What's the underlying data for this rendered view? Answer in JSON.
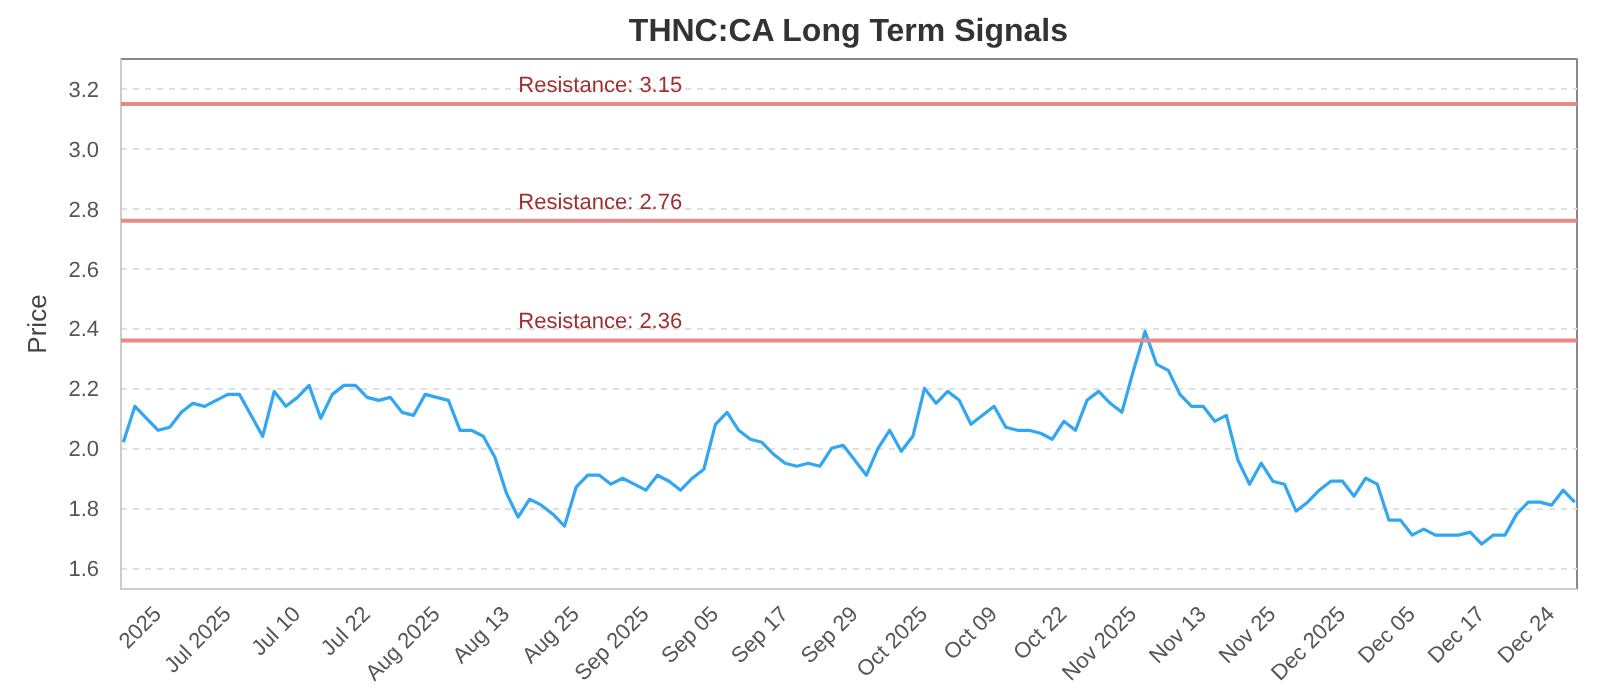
{
  "chart_data": {
    "type": "line",
    "title": "THNC:CA Long Term Signals",
    "ylabel": "Price",
    "categories": [
      null,
      null,
      null,
      "2025",
      null,
      null,
      null,
      null,
      null,
      "Jul 2025",
      null,
      null,
      null,
      null,
      null,
      "Jul 10",
      null,
      null,
      null,
      null,
      null,
      "Jul 22",
      null,
      null,
      null,
      null,
      null,
      "Aug 2025",
      null,
      null,
      null,
      null,
      null,
      "Aug 13",
      null,
      null,
      null,
      null,
      null,
      "Aug 25",
      null,
      null,
      null,
      null,
      null,
      "Sep 2025",
      null,
      null,
      null,
      null,
      null,
      "Sep 05",
      null,
      null,
      null,
      null,
      null,
      "Sep 17",
      null,
      null,
      null,
      null,
      null,
      "Sep 29",
      null,
      null,
      null,
      null,
      null,
      "Oct 2025",
      null,
      null,
      null,
      null,
      null,
      "Oct 09",
      null,
      null,
      null,
      null,
      null,
      "Oct 22",
      null,
      null,
      null,
      null,
      null,
      "Nov 2025",
      null,
      null,
      null,
      null,
      null,
      "Nov 13",
      null,
      null,
      null,
      null,
      null,
      "Nov 25",
      null,
      null,
      null,
      null,
      null,
      "Dec 2025",
      null,
      null,
      null,
      null,
      null,
      "Dec 05",
      null,
      null,
      null,
      null,
      null,
      "Dec 17",
      null,
      null,
      null,
      null,
      null,
      "Dec 24",
      null,
      null
    ],
    "series": [
      {
        "color": "#33a6f2",
        "values": [
          2.02,
          2.14,
          2.1,
          2.06,
          2.07,
          2.12,
          2.15,
          2.14,
          2.16,
          2.18,
          2.18,
          2.11,
          2.04,
          2.19,
          2.14,
          2.17,
          2.21,
          2.1,
          2.18,
          2.21,
          2.21,
          2.17,
          2.16,
          2.17,
          2.12,
          2.11,
          2.18,
          2.17,
          2.16,
          2.06,
          2.06,
          2.04,
          1.97,
          1.85,
          1.77,
          1.83,
          1.81,
          1.78,
          1.74,
          1.87,
          1.91,
          1.91,
          1.88,
          1.9,
          1.88,
          1.86,
          1.91,
          1.89,
          1.86,
          1.9,
          1.93,
          2.08,
          2.12,
          2.06,
          2.03,
          2.02,
          1.98,
          1.95,
          1.94,
          1.95,
          1.94,
          2.0,
          2.01,
          1.96,
          1.91,
          2.0,
          2.06,
          1.99,
          2.04,
          2.2,
          2.15,
          2.19,
          2.16,
          2.08,
          2.11,
          2.14,
          2.07,
          2.06,
          2.06,
          2.05,
          2.03,
          2.09,
          2.06,
          2.16,
          2.19,
          2.15,
          2.12,
          2.26,
          2.39,
          2.28,
          2.26,
          2.18,
          2.14,
          2.14,
          2.09,
          2.11,
          1.96,
          1.88,
          1.95,
          1.89,
          1.88,
          1.79,
          1.82,
          1.86,
          1.89,
          1.89,
          1.84,
          1.9,
          1.88,
          1.76,
          1.76,
          1.71,
          1.73,
          1.71,
          1.71,
          1.71,
          1.72,
          1.68,
          1.71,
          1.71,
          1.78,
          1.82,
          1.82,
          1.81,
          1.86,
          1.82
        ]
      }
    ],
    "ylim": [
      1.53,
      3.3
    ],
    "yticks": [
      1.6,
      1.8,
      {
        "value": 2,
        "label": "2.0"
      },
      2.2,
      2.4,
      2.6,
      2.8,
      {
        "value": 3,
        "label": "3.0"
      },
      3.2
    ],
    "grid": "y",
    "line_style": "solid",
    "marker": "none",
    "ref_lines": [
      {
        "axis": "y",
        "value": 3.15,
        "label": "Resistance: 3.15",
        "color": "#e88a8a"
      },
      {
        "axis": "y",
        "value": 2.76,
        "label": "Resistance: 2.76",
        "color": "#e88a8a"
      },
      {
        "axis": "y",
        "value": 2.36,
        "label": "Resistance: 2.36",
        "color": "#e88a8a"
      }
    ]
  }
}
